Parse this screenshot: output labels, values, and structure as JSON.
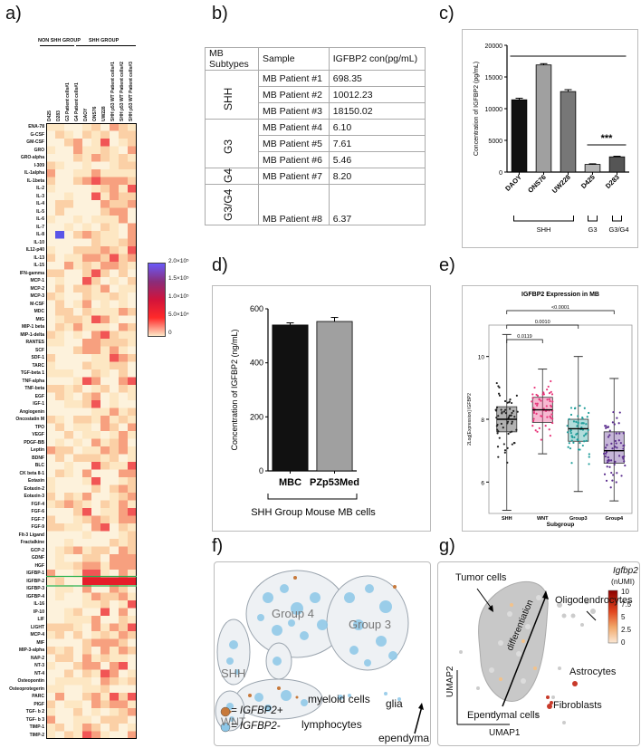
{
  "panel_labels": {
    "a": "a)",
    "b": "b)",
    "c": "c)",
    "d": "d)",
    "e": "e)",
    "f": "f)",
    "g": "g)"
  },
  "panel_a": {
    "group_labels": {
      "non_shh": "NON SHH GROUP",
      "shh": "SHH GROUP"
    },
    "columns": [
      "D425",
      "D283",
      "G3 Patient cells#1",
      "G4 Patient cells#1",
      "DAOY",
      "ONS76",
      "UW228",
      "SHH p53 WT Patient cells#1",
      "SHH p53 WT Patient cells#2",
      "SHH p53 WT Patient cells#3"
    ],
    "rows": [
      "ENA-78",
      "G-CSF",
      "GM-CSF",
      "GRO",
      "GRO-alpha",
      "I-309",
      "IL-1alpha",
      "IL-1beta",
      "IL-2",
      "IL-3",
      "IL-4",
      "IL-5",
      "IL-6",
      "IL-7",
      "IL-8",
      "IL-10",
      "IL12-p40",
      "IL-13",
      "IL-15",
      "IFN-gamma",
      "MCP-1",
      "MCP-2",
      "MCP-3",
      "M-CSF",
      "MDC",
      "MIG",
      "MIP-1 beta",
      "MIP-1-delta",
      "RANTES",
      "SCF",
      "SDF-1",
      "TARC",
      "TGF-beta 1",
      "TNF-alpha",
      "TNF-beta",
      "EGF",
      "IGF-1",
      "Angiogenin",
      "Oncostatin M",
      "TPO",
      "VEGF",
      "PDGF-BB",
      "Leptin",
      "BDNF",
      "BLC",
      "CK beta 8-1",
      "Eotaxin",
      "Eotaxin-2",
      "Eotaxin-3",
      "FGF-4",
      "FGF-6",
      "FGF-7",
      "FGF-9",
      "Flt-3 Ligand",
      "Fractalkine",
      "GCP-2",
      "GDNF",
      "HGF",
      "IGFBP-1",
      "IGFBP-2",
      "IGFBP-3",
      "IGFBP-4",
      "IL-16",
      "IP-10",
      "LIF",
      "LIGHT",
      "MCP-4",
      "MIF",
      "MIP-3-alpha",
      "NAP-2",
      "NT-3",
      "NT-4",
      "Osteopontin",
      "Osteoprotegerin",
      "PARC",
      "PIGF",
      "TGF- b 2",
      "TGF- b 3",
      "TIMP-1",
      "TIMP-2"
    ],
    "highlighted_row": "IGFBP-2",
    "colorbar_ticks": [
      "2.0×10⁵",
      "1.5×10⁵",
      "1.0×10⁵",
      "5.0×10⁴",
      "0"
    ]
  },
  "panel_b": {
    "headers": [
      "MB Subtypes",
      "Sample",
      "IGFBP2 con(pg/mL)"
    ],
    "subtypes": [
      "SHH",
      "G3",
      "G4",
      "G3/G4"
    ],
    "rows": [
      {
        "sample": "MB Patient #1",
        "value": "698.35"
      },
      {
        "sample": "MB Patient #2",
        "value": "10012.23"
      },
      {
        "sample": "MB Patient #3",
        "value": "18150.02"
      },
      {
        "sample": "MB Patient #4",
        "value": "6.10"
      },
      {
        "sample": "MB Patient #5",
        "value": "7.61"
      },
      {
        "sample": "MB Patient #6",
        "value": "5.46"
      },
      {
        "sample": "MB Patient #7",
        "value": "8.20"
      },
      {
        "sample": "MB Patient #8",
        "value": "6.37"
      }
    ]
  },
  "chart_data": [
    {
      "id": "c",
      "type": "bar",
      "categories": [
        "DAOY",
        "ONS76",
        "UW228",
        "D425",
        "D283"
      ],
      "values": [
        11400,
        16900,
        12700,
        1200,
        2400
      ],
      "errors": [
        250,
        200,
        300,
        100,
        100
      ],
      "colors": [
        "#111111",
        "#a0a0a0",
        "#777777",
        "#b5b5b5",
        "#555555"
      ],
      "ylabel": "Concentration of IGFBP2 (pg/mL)",
      "ylim": [
        0,
        20000
      ],
      "yticks": [
        "0",
        "5000",
        "10000",
        "15000",
        "20000"
      ],
      "significance": "***",
      "groups": [
        "SHH",
        "G3",
        "G3/G4"
      ]
    },
    {
      "id": "d",
      "type": "bar",
      "categories": [
        "MBC",
        "PZp53Med"
      ],
      "values": [
        540,
        553
      ],
      "errors": [
        8,
        15
      ],
      "colors": [
        "#111111",
        "#a0a0a0"
      ],
      "ylabel": "Concentration of IGFBP2 (ng/mL)",
      "ylim": [
        0,
        600
      ],
      "yticks": [
        "0",
        "200",
        "400",
        "600"
      ],
      "xlabel": "SHH Group Mouse MB cells"
    },
    {
      "id": "e",
      "type": "box",
      "title": "IGFBP2 Expression in MB",
      "categories": [
        "SHH",
        "WNT",
        "Group3",
        "Group4"
      ],
      "colors": [
        "#222222",
        "#e8357a",
        "#1f9d9a",
        "#5b2d8e"
      ],
      "stats": [
        {
          "min": 5.1,
          "q1": 7.6,
          "median": 8.0,
          "q3": 8.4,
          "max": 10.7
        },
        {
          "min": 6.9,
          "q1": 7.9,
          "median": 8.3,
          "q3": 8.7,
          "max": 9.6
        },
        {
          "min": 5.7,
          "q1": 7.3,
          "median": 7.7,
          "q3": 8.0,
          "max": 10.0
        },
        {
          "min": 5.4,
          "q1": 6.6,
          "median": 7.0,
          "q3": 7.6,
          "max": 9.3
        }
      ],
      "ylabel": "2Log[Expression] IGFBP2",
      "xlabel": "Subgroup",
      "ylim": [
        5,
        11
      ],
      "yticks": [
        "6",
        "8",
        "10"
      ],
      "pvalues": [
        "0.0119",
        "0.0010",
        "<0.0001"
      ]
    }
  ],
  "panel_f": {
    "labels": {
      "group4": "Group 4",
      "group3": "Group 3",
      "shh": "SHH",
      "wnt": "WNT",
      "myeloid": "myeloid cells",
      "lymph": "lymphocytes",
      "glia": "glia",
      "ependyma": "ependyma"
    },
    "legend_pos": "= IGFBP2+",
    "legend_neg": "= IGFBP2-"
  },
  "panel_g": {
    "labels": {
      "tumor": "Tumor cells",
      "diff": "differentiation",
      "oligo": "Oligodendrocytes",
      "astro": "Astrocytes",
      "fibro": "Fibroblasts",
      "ependymal": "Ependymal cells",
      "umap1": "UMAP1",
      "umap2": "UMAP2"
    },
    "scale_title": "Igfbp2",
    "scale_unit": "(nUMI)",
    "scale_ticks": [
      "10",
      "7.5",
      "5",
      "2.5",
      "0"
    ]
  }
}
